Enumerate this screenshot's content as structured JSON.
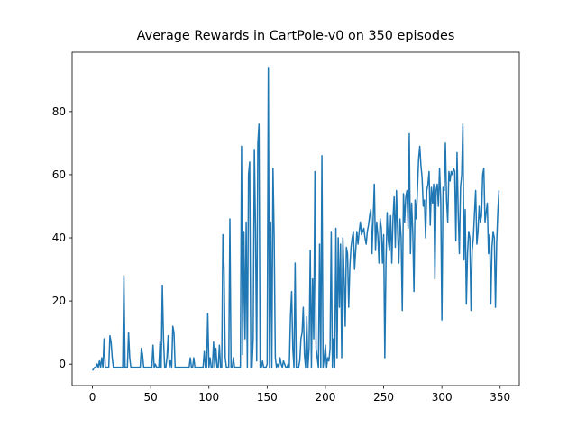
{
  "chart_data": {
    "type": "line",
    "title": "Average Rewards in CartPole-v0 on 350 episodes",
    "color": "#1f77b4",
    "xlim": [
      -17.45,
      366.45
    ],
    "xticks": [
      0,
      50,
      100,
      150,
      200,
      250,
      300,
      350
    ],
    "ylim": [
      -6.8,
      98.8
    ],
    "yticks": [
      0,
      20,
      40,
      60,
      80
    ],
    "values": [
      -2,
      -1.5,
      -1,
      -1,
      0,
      -1,
      1,
      -1,
      2,
      -1,
      8,
      -1,
      -1,
      -1,
      -1,
      9,
      7,
      2,
      -1,
      -1,
      -1,
      -1,
      -1,
      -1,
      -1,
      -1,
      -1,
      28,
      -1,
      -1,
      -1,
      10,
      2,
      -1,
      -1,
      -1,
      -1,
      -1,
      -1,
      -1,
      -1,
      -1,
      5,
      3,
      -1,
      -1,
      -1,
      -1,
      -1,
      -1,
      -1,
      -1,
      6,
      -1,
      0,
      -1,
      -1,
      -1,
      7,
      -1,
      25,
      8,
      -1,
      -1,
      2,
      9,
      -1,
      1,
      -1,
      12,
      10,
      -1,
      -1,
      -1,
      -1,
      -1,
      -1,
      -1,
      -1,
      -1,
      -1,
      -1,
      -1,
      -1,
      2,
      -1,
      -1,
      2,
      -1,
      -1,
      -1,
      -1,
      -1,
      -1,
      -1,
      -1,
      4,
      -1,
      -1,
      16,
      -1,
      2,
      -1,
      -1,
      7,
      -1,
      5,
      -1,
      -1,
      6,
      -1,
      -1,
      41,
      30,
      2,
      -1,
      -1,
      -1,
      46,
      -1,
      -1,
      2,
      -1,
      -1,
      -1,
      -1,
      -1,
      -1,
      69,
      3,
      42,
      8,
      45,
      -1,
      60,
      64,
      -1,
      -1,
      8,
      68,
      43,
      1,
      70,
      76,
      -1,
      -1,
      1,
      -1,
      -1,
      -1,
      0,
      94,
      -1,
      45,
      -1,
      62,
      40,
      2,
      -1,
      0,
      -1,
      2,
      0,
      -1,
      1,
      0,
      -1,
      -1,
      0,
      -1,
      15,
      23,
      5,
      -1,
      32,
      -1,
      -1,
      -1,
      1,
      8,
      10,
      18,
      3,
      -1,
      15,
      -1,
      5,
      36,
      -1,
      27,
      8,
      61,
      5,
      2,
      -1,
      38,
      -1,
      66,
      -1,
      2,
      6,
      -1,
      2,
      1,
      5,
      42,
      -1,
      8,
      -1,
      43,
      2,
      40,
      18,
      38,
      2,
      40,
      28,
      12,
      37,
      35,
      18,
      31,
      37,
      40,
      42,
      30,
      36,
      42,
      38,
      42,
      45,
      41,
      42,
      43,
      40,
      38,
      42,
      44,
      47,
      49,
      35,
      46,
      57,
      36,
      45,
      41,
      32,
      46,
      43,
      32,
      41,
      2,
      32,
      48,
      39,
      36,
      47,
      32,
      46,
      53,
      37,
      55,
      42,
      32,
      46,
      40,
      17,
      54,
      45,
      53,
      55,
      43,
      73,
      35,
      51,
      42,
      23,
      52,
      46,
      55,
      65,
      69,
      63,
      59,
      50,
      52,
      40,
      55,
      57,
      61,
      44,
      56,
      51,
      57,
      27,
      55,
      57,
      50,
      62,
      52,
      14,
      56,
      55,
      70,
      52,
      45,
      61,
      58,
      61,
      60,
      62,
      61,
      39,
      67,
      48,
      35,
      56,
      60,
      76,
      33,
      49,
      19,
      35,
      42,
      40,
      17,
      36,
      40,
      48,
      55,
      38,
      42,
      50,
      45,
      47,
      60,
      62,
      45,
      48,
      51,
      35,
      41,
      19,
      37,
      42,
      40,
      18,
      38,
      48,
      55
    ]
  }
}
